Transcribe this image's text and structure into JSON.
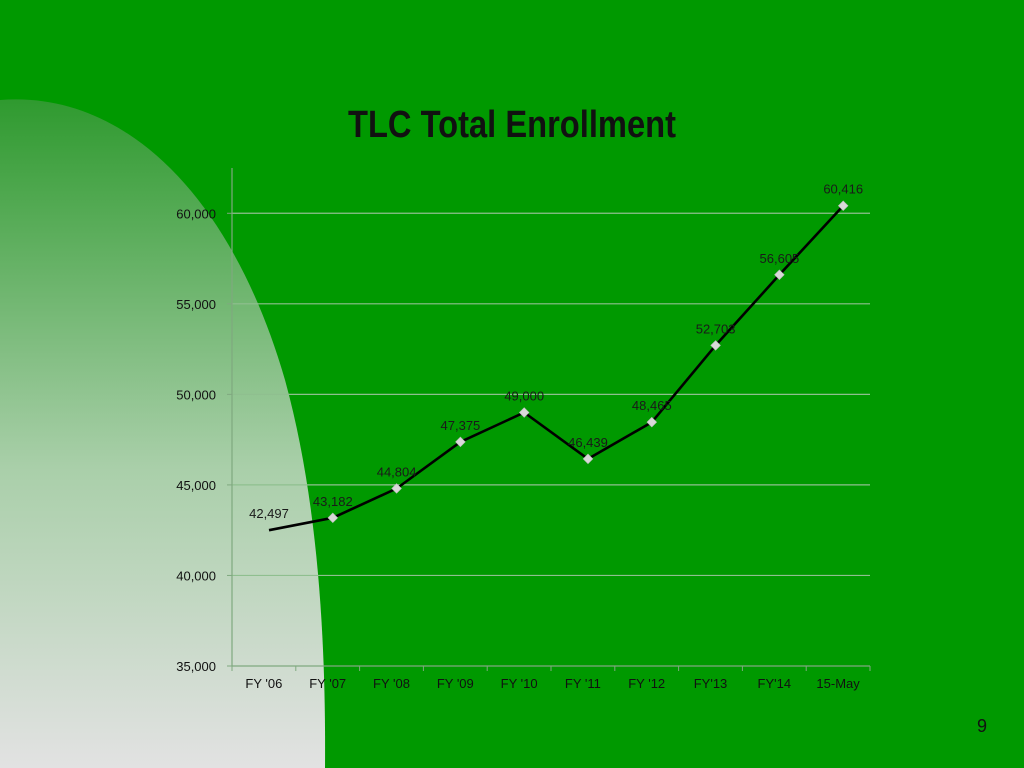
{
  "slide": {
    "page_number": "9",
    "background_color": "#009900"
  },
  "chart_data": {
    "type": "line",
    "title": "TLC Total Enrollment",
    "xlabel": "",
    "ylabel": "",
    "categories": [
      "FY '06",
      "FY '07",
      "FY '08",
      "FY '09",
      "FY '10",
      "FY '11",
      "FY '12",
      "FY'13",
      "FY'14",
      "15-May"
    ],
    "series": [
      {
        "values": [
          42497,
          43182,
          44804,
          47375,
          49000,
          46439,
          48465,
          52703,
          56605,
          60416
        ],
        "data_labels": [
          "42,497",
          "43,182",
          "44,804",
          "47,375",
          "49,000",
          "46,439",
          "48,465",
          "52,703",
          "56,605",
          "60,416"
        ],
        "line_color": "#000000",
        "marker_color": "#d9d9d9"
      }
    ],
    "ylim": [
      35000,
      62500
    ],
    "yticks": [
      35000,
      40000,
      45000,
      50000,
      55000,
      60000
    ],
    "ytick_labels": [
      "35,000",
      "40,000",
      "45,000",
      "50,000",
      "55,000",
      "60,000"
    ],
    "grid": true,
    "gridline_color": "#8fbf8f",
    "legend": "none"
  }
}
